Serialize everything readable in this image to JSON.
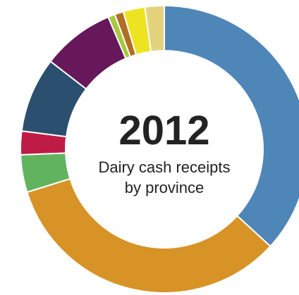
{
  "chart_data": {
    "type": "pie",
    "title": "2012",
    "subtitle_lines": [
      "Dairy cash receipts",
      "by province"
    ],
    "legend": "none",
    "slices": [
      {
        "value": 37.5,
        "color": "#4f86b8"
      },
      {
        "value": 34.0,
        "color": "#d79326"
      },
      {
        "value": 4.3,
        "color": "#62b35e"
      },
      {
        "value": 2.7,
        "color": "#be1c46"
      },
      {
        "value": 8.6,
        "color": "#2b4f6e"
      },
      {
        "value": 8.3,
        "color": "#66185a"
      },
      {
        "value": 0.8,
        "color": "#a7c83c"
      },
      {
        "value": 1.0,
        "color": "#b06e24"
      },
      {
        "value": 2.5,
        "color": "#eee320"
      },
      {
        "value": 2.2,
        "color": "#e3d27c"
      }
    ]
  }
}
